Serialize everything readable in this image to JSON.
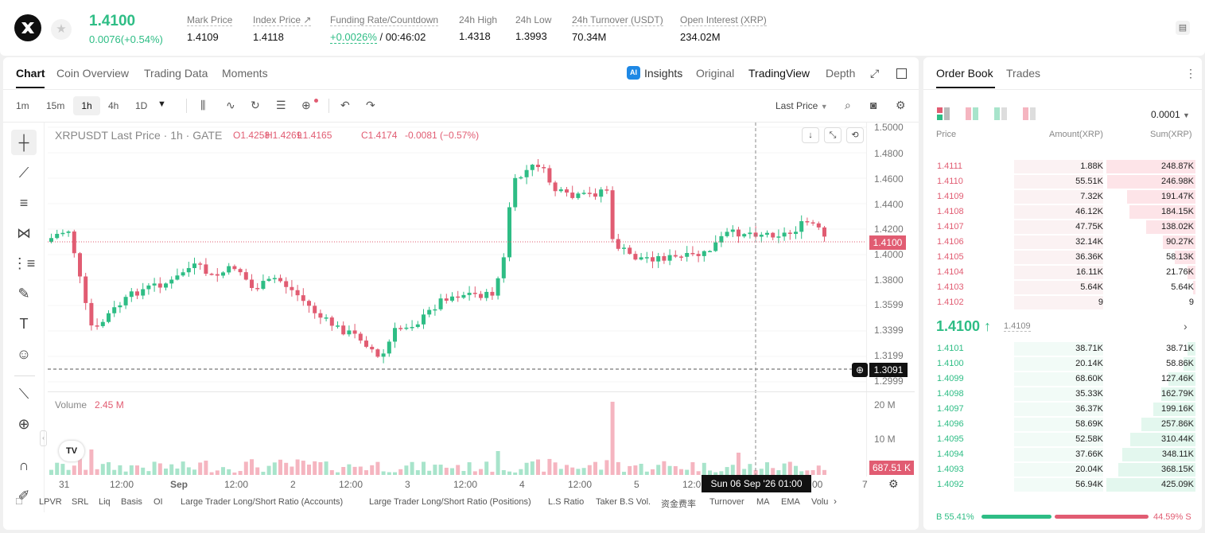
{
  "header": {
    "last_price": "1.4100",
    "change": "0.0076(+0.54%)",
    "stats": [
      {
        "label": "Mark Price",
        "value": "1.4109"
      },
      {
        "label": "Index Price ↗",
        "value": "1.4118"
      },
      {
        "label": "Funding Rate/Countdown",
        "value_green": "+0.0026%",
        "value": "/ 00:46:02"
      },
      {
        "label": "24h High",
        "value": "1.4318"
      },
      {
        "label": "24h Low",
        "value": "1.3993"
      },
      {
        "label": "24h Turnover (USDT)",
        "value": "70.34M"
      },
      {
        "label": "Open Interest (XRP)",
        "value": "234.02M"
      }
    ]
  },
  "chart_panel": {
    "tabs": [
      "Chart",
      "Coin Overview",
      "Trading Data",
      "Moments"
    ],
    "view_tabs": [
      "Insights",
      "Original",
      "TradingView",
      "Depth"
    ],
    "timeframes": [
      "1m",
      "15m",
      "1h",
      "4h",
      "1D"
    ],
    "price_type": "Last Price",
    "legend": {
      "symbol": "XRPUSDT Last Price · 1h · GATE",
      "o": "O1.4258",
      "h": "H1.4269",
      "l": "L1.4165",
      "c": "C1.4174",
      "chg": "-0.0081 (−0.57%)"
    },
    "price_axis": [
      "1.5000",
      "1.4800",
      "1.4600",
      "1.4400",
      "1.4200",
      "1.4000",
      "1.3800",
      "1.3599",
      "1.3399",
      "1.3199",
      "1.2999"
    ],
    "price_tag": "1.4100",
    "cross_tag": "1.3091",
    "volume_label": "Volume",
    "volume_value": "2.45 M",
    "volume_axis": [
      "20 M",
      "10 M"
    ],
    "volume_tag": "687.51 K",
    "time_axis": [
      "31",
      "12:00",
      "Sep",
      "12:00",
      "2",
      "12:00",
      "3",
      "12:00",
      "4",
      "12:00",
      "5",
      "12:0",
      "00",
      "7"
    ],
    "date_tag": "Sun 06 Sep '26   01:00",
    "indicators": [
      "LPVR",
      "SRL",
      "Liq",
      "Basis",
      "OI",
      "Large Trader Long/Short Ratio (Accounts)",
      "Large Trader Long/Short Ratio (Positions)",
      "L.S Ratio",
      "Taker B.S Vol.",
      "资金费率",
      "Turnover",
      "MA",
      "EMA",
      "Volu"
    ],
    "tv_logo": "TV"
  },
  "order_book": {
    "tabs": [
      "Order Book",
      "Trades"
    ],
    "precision": "0.0001",
    "headers": [
      "Price",
      "Amount(XRP)",
      "Sum(XRP)"
    ],
    "asks": [
      [
        "1.4111",
        "1.88K",
        "248.87K"
      ],
      [
        "1.4110",
        "55.51K",
        "246.98K"
      ],
      [
        "1.4109",
        "7.32K",
        "191.47K"
      ],
      [
        "1.4108",
        "46.12K",
        "184.15K"
      ],
      [
        "1.4107",
        "47.75K",
        "138.02K"
      ],
      [
        "1.4106",
        "32.14K",
        "90.27K"
      ],
      [
        "1.4105",
        "36.36K",
        "58.13K"
      ],
      [
        "1.4104",
        "16.11K",
        "21.76K"
      ],
      [
        "1.4103",
        "5.64K",
        "5.64K"
      ],
      [
        "1.4102",
        "9",
        "9"
      ]
    ],
    "ask_depth": [
      1.0,
      0.992,
      0.769,
      0.74,
      0.555,
      0.363,
      0.234,
      0.087,
      0.023,
      0.0
    ],
    "mid_price": "1.4100 ↑",
    "mid_mark": "1.4109",
    "bids": [
      [
        "1.4101",
        "38.71K",
        "38.71K"
      ],
      [
        "1.4100",
        "20.14K",
        "58.86K"
      ],
      [
        "1.4099",
        "68.60K",
        "127.46K"
      ],
      [
        "1.4098",
        "35.33K",
        "162.79K"
      ],
      [
        "1.4097",
        "36.37K",
        "199.16K"
      ],
      [
        "1.4096",
        "58.69K",
        "257.86K"
      ],
      [
        "1.4095",
        "52.58K",
        "310.44K"
      ],
      [
        "1.4094",
        "37.66K",
        "348.11K"
      ],
      [
        "1.4093",
        "20.04K",
        "368.15K"
      ],
      [
        "1.4092",
        "56.94K",
        "425.09K"
      ]
    ],
    "bid_depth": [
      0.091,
      0.138,
      0.3,
      0.383,
      0.469,
      0.607,
      0.73,
      0.819,
      0.866,
      1.0
    ],
    "buy_ratio": "B 55.41%",
    "sell_ratio": "44.59% S",
    "colors": {
      "green": "#2ebd85",
      "red": "#e15c72"
    }
  }
}
